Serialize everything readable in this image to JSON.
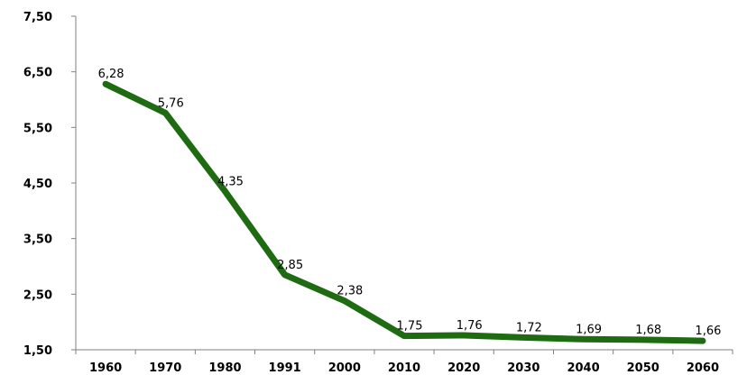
{
  "chart_data": {
    "type": "line",
    "title": "",
    "xlabel": "",
    "ylabel": "",
    "categories": [
      "1960",
      "1970",
      "1980",
      "1991",
      "2000",
      "2010",
      "2020",
      "2030",
      "2040",
      "2050",
      "2060"
    ],
    "series": [
      {
        "values": [
          6.28,
          5.76,
          4.35,
          2.85,
          2.38,
          1.75,
          1.76,
          1.72,
          1.69,
          1.68,
          1.66
        ],
        "data_labels": [
          "6,28",
          "5,76",
          "4,35",
          "2,85",
          "2,38",
          "1,75",
          "1,76",
          "1,72",
          "1,69",
          "1,68",
          "1,66"
        ],
        "color": "#1e6b12"
      }
    ],
    "ylim": [
      1.5,
      7.5
    ],
    "yticks": [
      1.5,
      2.5,
      3.5,
      4.5,
      5.5,
      6.5,
      7.5
    ],
    "ytick_labels": [
      "1,50",
      "2,50",
      "3,50",
      "4,50",
      "5,50",
      "6,50",
      "7,50"
    ],
    "grid": false,
    "legend": "none"
  }
}
